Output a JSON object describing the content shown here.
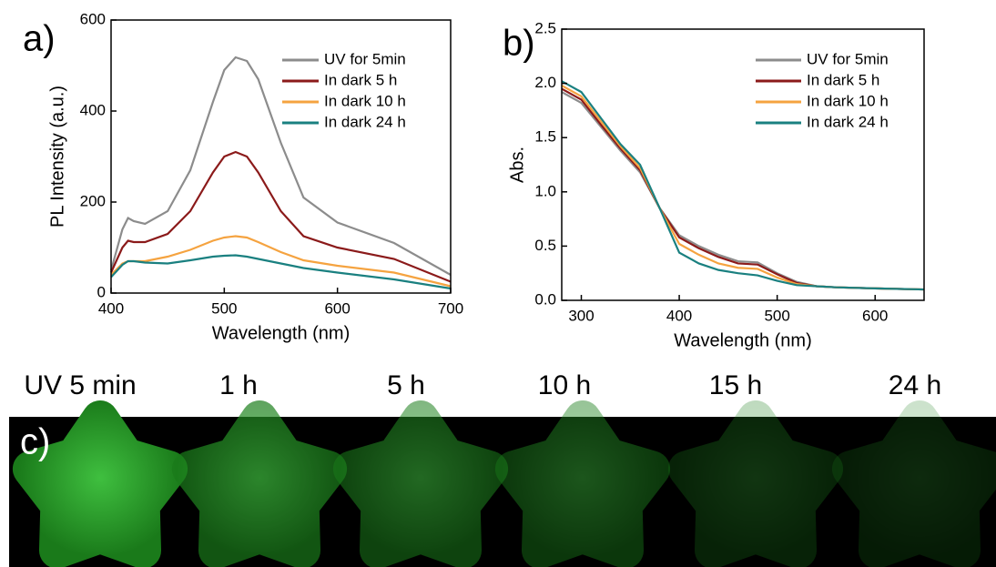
{
  "chart_data": [
    {
      "type": "line",
      "panel_label": "a)",
      "xlabel": "Wavelength (nm)",
      "ylabel": "PL Intensity (a.u.)",
      "x": [
        400,
        410,
        415,
        420,
        430,
        450,
        470,
        490,
        500,
        510,
        520,
        530,
        550,
        570,
        600,
        650,
        700
      ],
      "series": [
        {
          "name": "UV for 5min",
          "color": "#8c8c8c",
          "values": [
            50,
            140,
            165,
            158,
            152,
            180,
            270,
            420,
            490,
            518,
            510,
            470,
            330,
            210,
            155,
            110,
            40
          ]
        },
        {
          "name": "In dark 5 h",
          "color": "#8b1a1a",
          "values": [
            45,
            100,
            115,
            112,
            112,
            130,
            180,
            265,
            300,
            310,
            300,
            265,
            180,
            125,
            100,
            75,
            25
          ]
        },
        {
          "name": "In dark 10 h",
          "color": "#f5a340",
          "values": [
            40,
            65,
            70,
            70,
            70,
            80,
            95,
            115,
            122,
            125,
            122,
            112,
            90,
            72,
            60,
            45,
            15
          ]
        },
        {
          "name": "In dark 24 h",
          "color": "#1a8080",
          "values": [
            35,
            62,
            70,
            70,
            67,
            65,
            72,
            80,
            82,
            83,
            80,
            75,
            65,
            55,
            45,
            30,
            10
          ]
        }
      ],
      "xlim": [
        400,
        700
      ],
      "xticks": [
        400,
        500,
        600,
        700
      ],
      "ylim": [
        0,
        600
      ],
      "yticks": [
        0,
        200,
        400,
        600
      ],
      "legend": "upper right"
    },
    {
      "type": "line",
      "panel_label": "b)",
      "xlabel": "Wavelength (nm)",
      "ylabel": "Abs.",
      "x": [
        280,
        300,
        320,
        340,
        360,
        380,
        400,
        420,
        440,
        460,
        480,
        500,
        520,
        540,
        560,
        600,
        650
      ],
      "series": [
        {
          "name": "UV for 5min",
          "color": "#8c8c8c",
          "values": [
            1.92,
            1.82,
            1.6,
            1.38,
            1.18,
            0.85,
            0.6,
            0.5,
            0.42,
            0.36,
            0.35,
            0.25,
            0.17,
            0.13,
            0.12,
            0.11,
            0.1
          ]
        },
        {
          "name": "In dark 5 h",
          "color": "#8b1a1a",
          "values": [
            1.95,
            1.85,
            1.62,
            1.4,
            1.2,
            0.85,
            0.58,
            0.48,
            0.4,
            0.34,
            0.33,
            0.24,
            0.16,
            0.13,
            0.12,
            0.11,
            0.1
          ]
        },
        {
          "name": "In dark 10 h",
          "color": "#f5a340",
          "values": [
            1.98,
            1.88,
            1.65,
            1.42,
            1.22,
            0.85,
            0.52,
            0.42,
            0.34,
            0.3,
            0.29,
            0.21,
            0.15,
            0.13,
            0.12,
            0.11,
            0.1
          ]
        },
        {
          "name": "In dark 24 h",
          "color": "#1a8080",
          "values": [
            2.02,
            1.92,
            1.68,
            1.44,
            1.25,
            0.85,
            0.44,
            0.34,
            0.28,
            0.25,
            0.23,
            0.18,
            0.14,
            0.13,
            0.12,
            0.11,
            0.1
          ]
        }
      ],
      "xlim": [
        280,
        650
      ],
      "xticks": [
        300,
        400,
        500,
        600
      ],
      "ylim": [
        0,
        2.5
      ],
      "yticks": [
        {
          "value": 0,
          "label": "0.0"
        },
        0.5,
        {
          "value": 1,
          "label": "1.0"
        },
        1.5,
        {
          "value": 2,
          "label": "2.0"
        },
        2.5
      ],
      "legend": "upper right"
    }
  ],
  "photos": {
    "panel_label": "c)",
    "labels": [
      "UV 5 min",
      "1 h",
      "5 h",
      "10 h",
      "15 h",
      "24 h"
    ]
  }
}
